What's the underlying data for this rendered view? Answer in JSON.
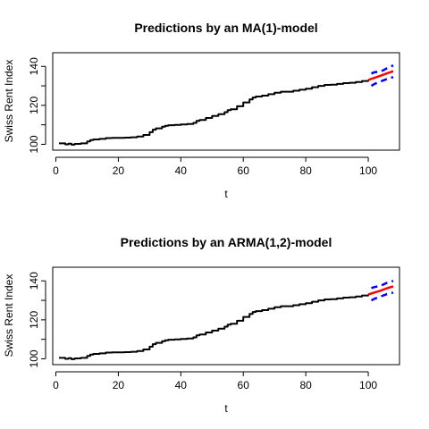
{
  "chart_data": [
    {
      "type": "line",
      "title": "Predictions by an MA(1)-model",
      "xlabel": "t",
      "ylabel": "Swiss Rent Index",
      "xlim": [
        -1,
        110
      ],
      "ylim": [
        97,
        147
      ],
      "xticks": [
        0,
        20,
        40,
        60,
        80,
        100
      ],
      "yticks": [
        100,
        120,
        140
      ],
      "grid": false,
      "series": [
        {
          "role": "observed",
          "color": "#000000",
          "x": [
            1,
            3,
            4,
            5,
            6,
            8,
            10,
            11,
            12,
            14,
            16,
            18,
            20,
            22,
            24,
            26,
            28,
            30,
            31,
            32,
            34,
            35,
            36,
            38,
            40,
            42,
            44,
            45,
            46,
            48,
            50,
            52,
            54,
            55,
            56,
            58,
            60,
            62,
            63,
            64,
            66,
            68,
            70,
            72,
            74,
            76,
            78,
            80,
            82,
            84,
            86,
            88,
            90,
            92,
            94,
            96,
            98,
            100
          ],
          "y": [
            100.5,
            100,
            100.3,
            99.8,
            100.2,
            100.5,
            101.5,
            102.2,
            102.5,
            102.8,
            103.2,
            103.3,
            103.3,
            103.4,
            103.6,
            104.0,
            104.8,
            106.2,
            107.5,
            108.2,
            109.0,
            109.5,
            109.8,
            110.0,
            110.2,
            110.4,
            111.0,
            112.0,
            112.5,
            113.5,
            114.5,
            115.5,
            116.5,
            117.5,
            118.0,
            119.5,
            121.5,
            123.0,
            124.0,
            124.5,
            125.0,
            125.7,
            126.5,
            127.0,
            127.0,
            127.5,
            128.0,
            128.5,
            129.3,
            130.0,
            130.5,
            130.6,
            131.0,
            131.4,
            131.6,
            132.0,
            132.5,
            133.0
          ]
        },
        {
          "role": "prediction",
          "color": "#ff0000",
          "x": [
            100,
            102,
            104,
            106,
            108
          ],
          "y": [
            133.0,
            134.1,
            135.2,
            136.4,
            137.5
          ]
        },
        {
          "role": "upper-bound",
          "color": "#0000ff",
          "x": [
            101,
            102,
            104,
            106,
            107,
            108
          ],
          "y": [
            136.3,
            137.0,
            137.3,
            139.0,
            139.8,
            140.5
          ]
        },
        {
          "role": "lower-bound",
          "color": "#0000ff",
          "x": [
            101,
            102,
            104,
            106,
            107,
            108
          ],
          "y": [
            130.0,
            131.0,
            132.3,
            133.5,
            134.0,
            134.5
          ]
        }
      ]
    },
    {
      "type": "line",
      "title": "Predictions by an ARMA(1,2)-model",
      "xlabel": "t",
      "ylabel": "Swiss Rent Index",
      "xlim": [
        -1,
        110
      ],
      "ylim": [
        97,
        147
      ],
      "xticks": [
        0,
        20,
        40,
        60,
        80,
        100
      ],
      "yticks": [
        100,
        120,
        140
      ],
      "grid": false,
      "series": [
        {
          "role": "observed",
          "color": "#000000",
          "x": [
            1,
            3,
            4,
            5,
            6,
            8,
            10,
            11,
            12,
            14,
            16,
            18,
            20,
            22,
            24,
            26,
            28,
            30,
            31,
            32,
            34,
            35,
            36,
            38,
            40,
            42,
            44,
            45,
            46,
            48,
            50,
            52,
            54,
            55,
            56,
            58,
            60,
            62,
            63,
            64,
            66,
            68,
            70,
            72,
            74,
            76,
            78,
            80,
            82,
            84,
            86,
            88,
            90,
            92,
            94,
            96,
            98,
            100
          ],
          "y": [
            100.5,
            100,
            100.3,
            99.8,
            100.2,
            100.5,
            101.5,
            102.2,
            102.5,
            102.8,
            103.2,
            103.3,
            103.3,
            103.4,
            103.6,
            104.0,
            104.8,
            106.2,
            107.5,
            108.2,
            109.0,
            109.5,
            109.8,
            110.0,
            110.2,
            110.4,
            111.0,
            112.0,
            112.5,
            113.5,
            114.5,
            115.5,
            116.5,
            117.5,
            118.0,
            119.5,
            121.5,
            123.0,
            124.0,
            124.5,
            125.0,
            125.7,
            126.5,
            127.0,
            127.0,
            127.5,
            128.0,
            128.5,
            129.3,
            130.0,
            130.5,
            130.6,
            131.0,
            131.4,
            131.6,
            132.0,
            132.5,
            133.0
          ]
        },
        {
          "role": "prediction",
          "color": "#ff0000",
          "x": [
            100,
            102,
            104,
            106,
            108
          ],
          "y": [
            133.0,
            134.0,
            135.0,
            136.2,
            137.2
          ]
        },
        {
          "role": "upper-bound",
          "color": "#0000ff",
          "x": [
            101,
            102,
            104,
            106,
            107,
            108
          ],
          "y": [
            136.3,
            136.8,
            137.5,
            139.0,
            139.5,
            140.0
          ]
        },
        {
          "role": "lower-bound",
          "color": "#0000ff",
          "x": [
            101,
            102,
            104,
            106,
            107,
            108
          ],
          "y": [
            130.0,
            130.8,
            132.0,
            133.2,
            133.5,
            134.0
          ]
        }
      ]
    }
  ]
}
